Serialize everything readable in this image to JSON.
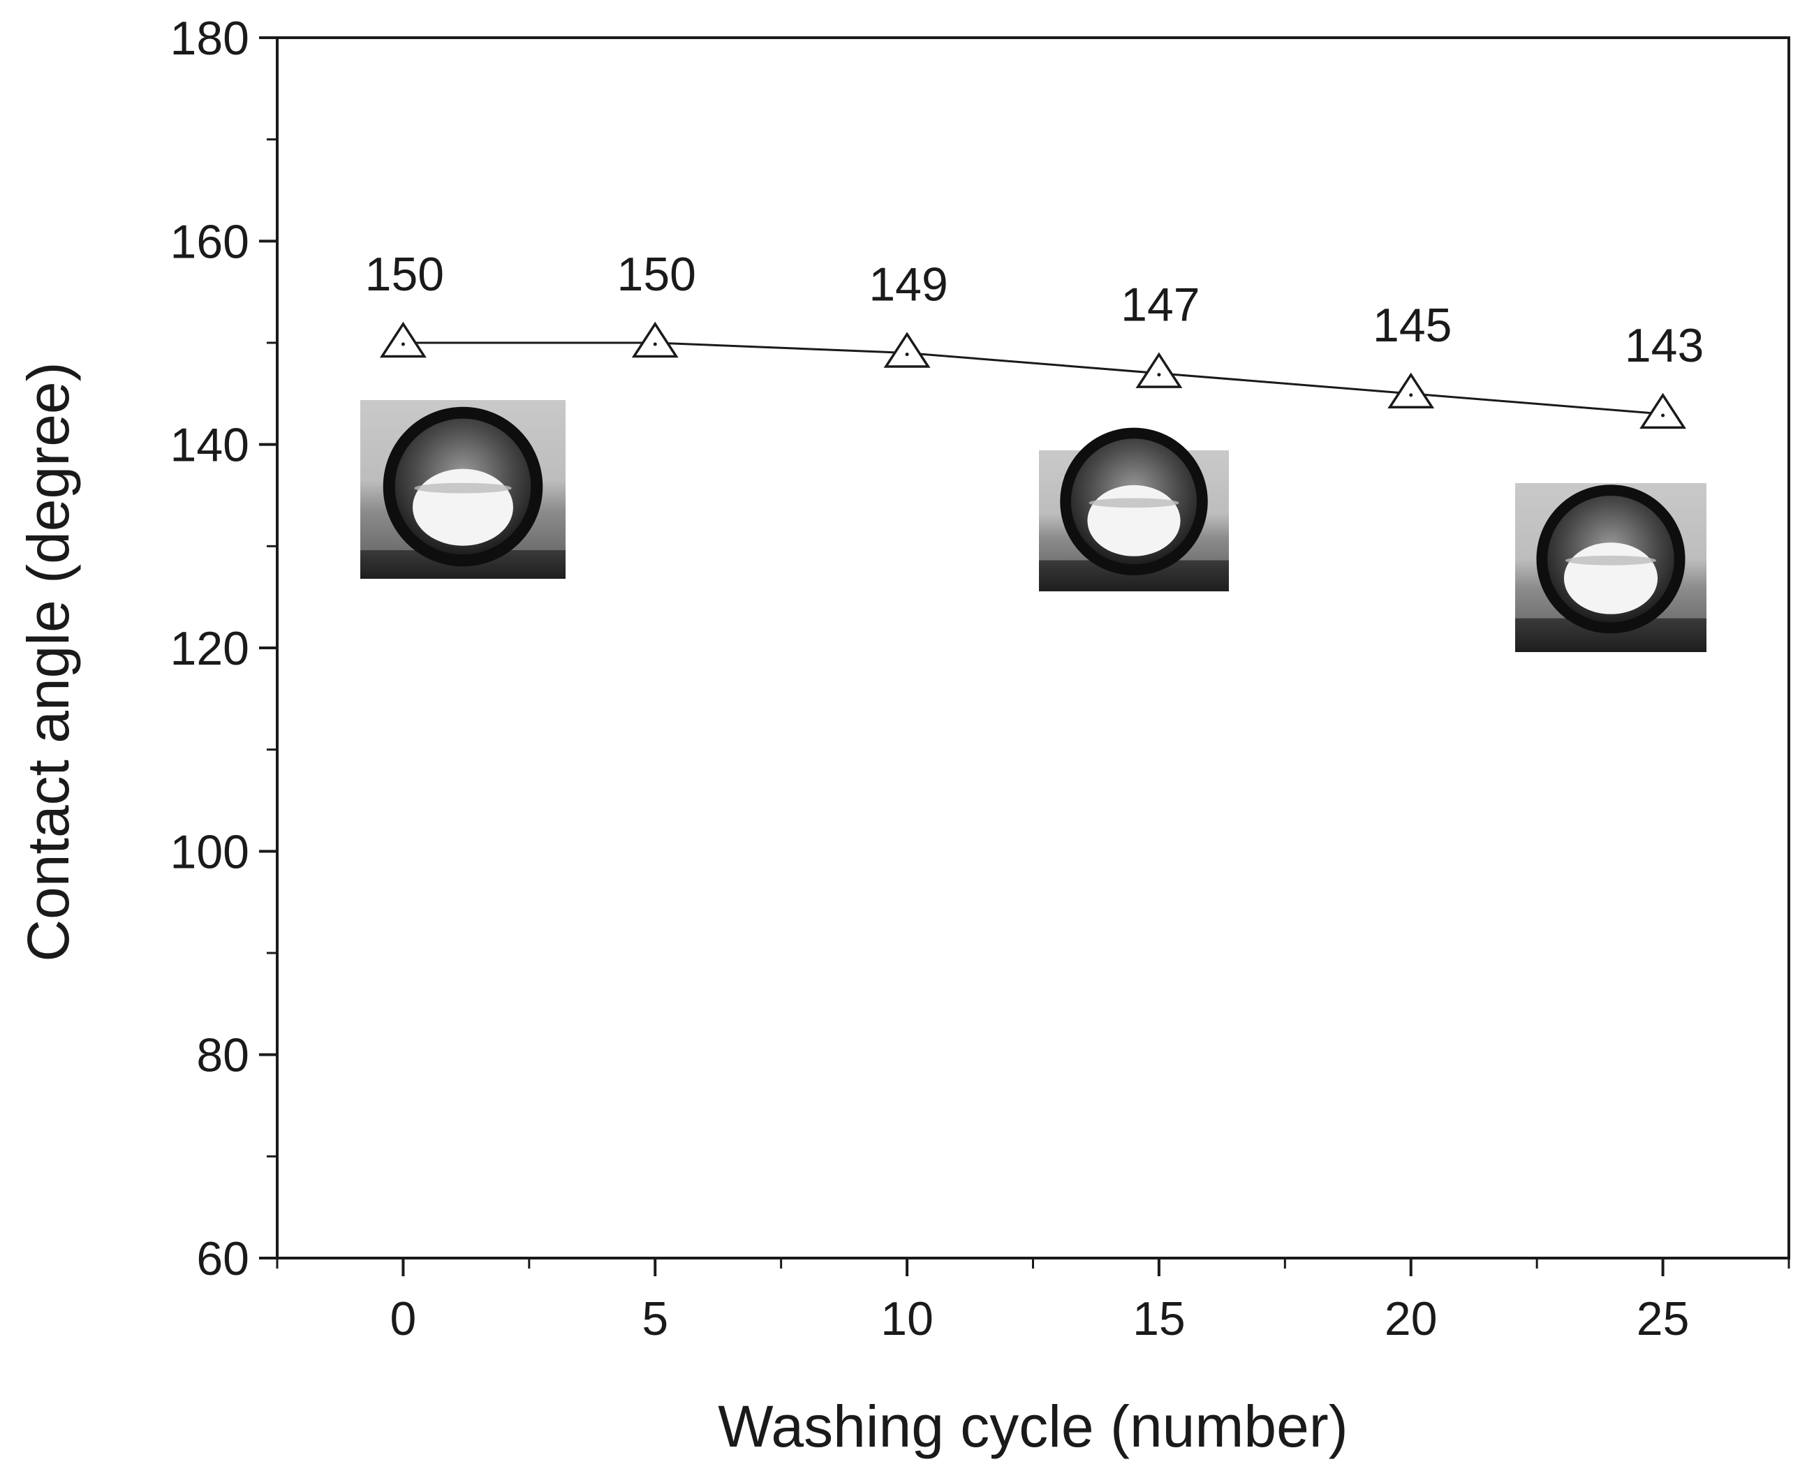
{
  "chart_data": {
    "type": "line",
    "title": "",
    "xlabel": "Washing cycle (number)",
    "ylabel": "Contact angle (degree)",
    "xlim": [
      -2.5,
      27.5
    ],
    "ylim": [
      60,
      180
    ],
    "x_ticks": [
      0,
      5,
      10,
      15,
      20,
      25
    ],
    "x_tick_labels": [
      "0",
      "5",
      "10",
      "15",
      "20",
      "25"
    ],
    "y_ticks": [
      60,
      80,
      100,
      120,
      140,
      160,
      180
    ],
    "y_tick_labels": [
      "60",
      "80",
      "100",
      "120",
      "140",
      "160",
      "180"
    ],
    "grid": false,
    "legend": "none",
    "marker": "open-triangle",
    "line_color": "#1a1a1a",
    "series": [
      {
        "x": [
          0,
          5,
          10,
          15,
          20,
          25
        ],
        "values": [
          150,
          150,
          149,
          147,
          145,
          143
        ],
        "data_labels": [
          "150",
          "150",
          "149",
          "147",
          "145",
          "143"
        ]
      }
    ],
    "insets": [
      {
        "image": "water-droplet-photo",
        "near_x": 0
      },
      {
        "image": "water-droplet-photo",
        "near_x": 15
      },
      {
        "image": "water-droplet-photo",
        "near_x": 25
      }
    ]
  }
}
